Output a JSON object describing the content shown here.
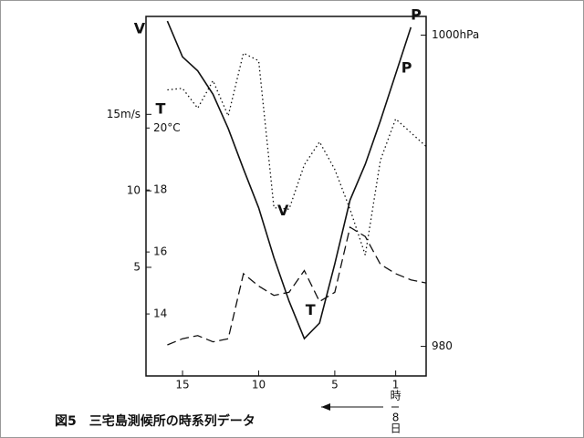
{
  "chart_data": {
    "type": "line",
    "caption": "図5　三宅島測候所の時系列データ",
    "ylabel": "V",
    "y2label": "T",
    "y3label": "P",
    "x": [
      16,
      15,
      14,
      13,
      12,
      11,
      10,
      9,
      8,
      7,
      6,
      5,
      4,
      3,
      2,
      1,
      0,
      -1
    ],
    "xlim": [
      17.4,
      -1
    ],
    "xticks": [
      15,
      10,
      5,
      1
    ],
    "x_note": [
      "時",
      "8",
      "日"
    ],
    "ylim": [
      -2.1,
      21.4
    ],
    "yticks": [
      {
        "value": 15,
        "label": "15m/s"
      },
      10,
      5
    ],
    "y2lim": [
      12.0,
      23.6
    ],
    "y2ticks": [
      {
        "value": 20,
        "label": "20°C"
      },
      18,
      16,
      14
    ],
    "y3lim": [
      978.1,
      1001.2
    ],
    "y3ticks": [
      {
        "value": 1000,
        "label": "1000hPa"
      },
      980
    ],
    "series": [
      {
        "name": "P",
        "color": "#111111",
        "style": "solid",
        "axis": "y3",
        "values": [
          1000.9,
          998.6,
          997.7,
          996.2,
          994.0,
          991.4,
          988.9,
          985.7,
          982.9,
          980.5,
          981.5,
          985.3,
          989.4,
          991.7,
          994.5,
          997.5,
          1000.5,
          null
        ]
      },
      {
        "name": "V",
        "color": "#111111",
        "style": "dotted",
        "axis": "y",
        "values": [
          16.6,
          16.7,
          15.4,
          17.2,
          14.9,
          19.0,
          18.5,
          8.9,
          8.8,
          11.7,
          13.2,
          11.4,
          8.8,
          5.8,
          12.0,
          14.7,
          13.8,
          12.9
        ]
      },
      {
        "name": "T",
        "color": "#111111",
        "style": "dashed",
        "axis": "y2",
        "values": [
          13.0,
          13.2,
          13.3,
          13.1,
          13.2,
          15.3,
          14.9,
          14.6,
          14.7,
          15.4,
          14.4,
          14.7,
          16.8,
          16.5,
          15.6,
          15.3,
          15.1,
          15.0
        ]
      }
    ]
  }
}
